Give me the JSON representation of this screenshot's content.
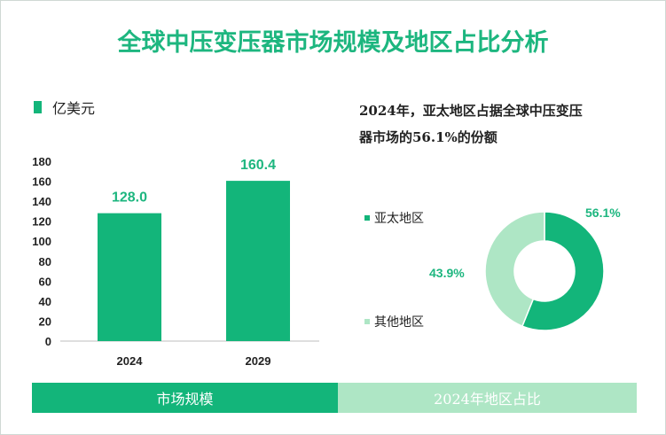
{
  "title": "全球中压变压器市场规模及地区占比分析",
  "unit_label": "亿美元",
  "note": {
    "line1": "2024年，亚太地区占据全球中压变压",
    "line2": "器市场的56.1%的份额"
  },
  "colors": {
    "primary": "#13b57a",
    "secondary": "#aee6c5",
    "title": "#1db67f"
  },
  "footer": {
    "left_label": "市场规模",
    "right_label": "2024年地区占比"
  },
  "chart_data": [
    {
      "type": "bar",
      "categories": [
        "2024",
        "2029"
      ],
      "values": [
        128.0,
        160.4
      ],
      "data_labels": [
        "128.0",
        "160.4"
      ],
      "ylabel": "亿美元",
      "ylim": [
        0,
        180
      ],
      "yticks": [
        0,
        20,
        40,
        60,
        80,
        100,
        120,
        140,
        160,
        180
      ],
      "grid": false
    },
    {
      "type": "pie",
      "style": "donut",
      "labels": [
        "亚太地区",
        "其他地区"
      ],
      "values": [
        56.1,
        43.9
      ],
      "data_labels": [
        "56.1%",
        "43.9%"
      ],
      "legend": "left"
    }
  ]
}
